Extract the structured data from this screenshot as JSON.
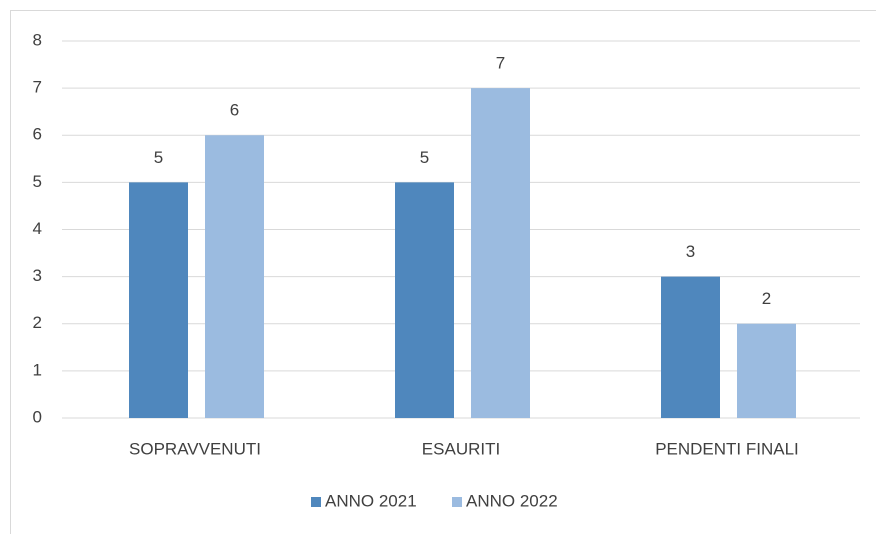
{
  "chart_data": {
    "type": "bar",
    "categories": [
      "SOPRAVVENUTI",
      "ESAURITI",
      "PENDENTI FINALI"
    ],
    "series": [
      {
        "name": "ANNO 2021",
        "color": "#4f87bd",
        "values": [
          5,
          5,
          3
        ]
      },
      {
        "name": "ANNO 2022",
        "color": "#9bbbe0",
        "values": [
          6,
          7,
          2
        ]
      }
    ],
    "ylim": [
      0,
      8
    ],
    "yticks": [
      0,
      1,
      2,
      3,
      4,
      5,
      6,
      7,
      8
    ],
    "grid": true,
    "legend": "bottom",
    "data_labels": true
  }
}
